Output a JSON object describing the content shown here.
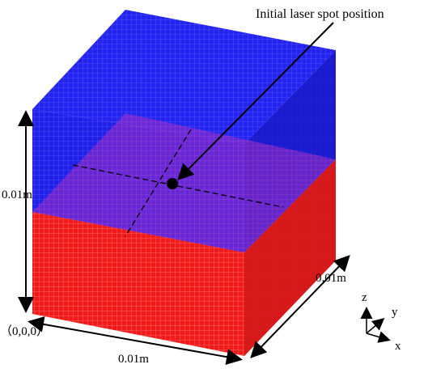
{
  "annotation": {
    "text": "Initial laser spot position"
  },
  "dimensions": {
    "height_label": "0.01m",
    "width_label": "0.01m",
    "depth_label": "0.01m",
    "origin_label": "（0,0,0）"
  },
  "axes": {
    "z": "z",
    "y": "y",
    "x": "x"
  },
  "colors": {
    "top_region": "#1c1cf2",
    "bottom_region": "#f21c1c",
    "mesh_line_top": "#4a4aff",
    "mesh_line_bottom": "#ff6a6a",
    "spot": "#000000"
  }
}
